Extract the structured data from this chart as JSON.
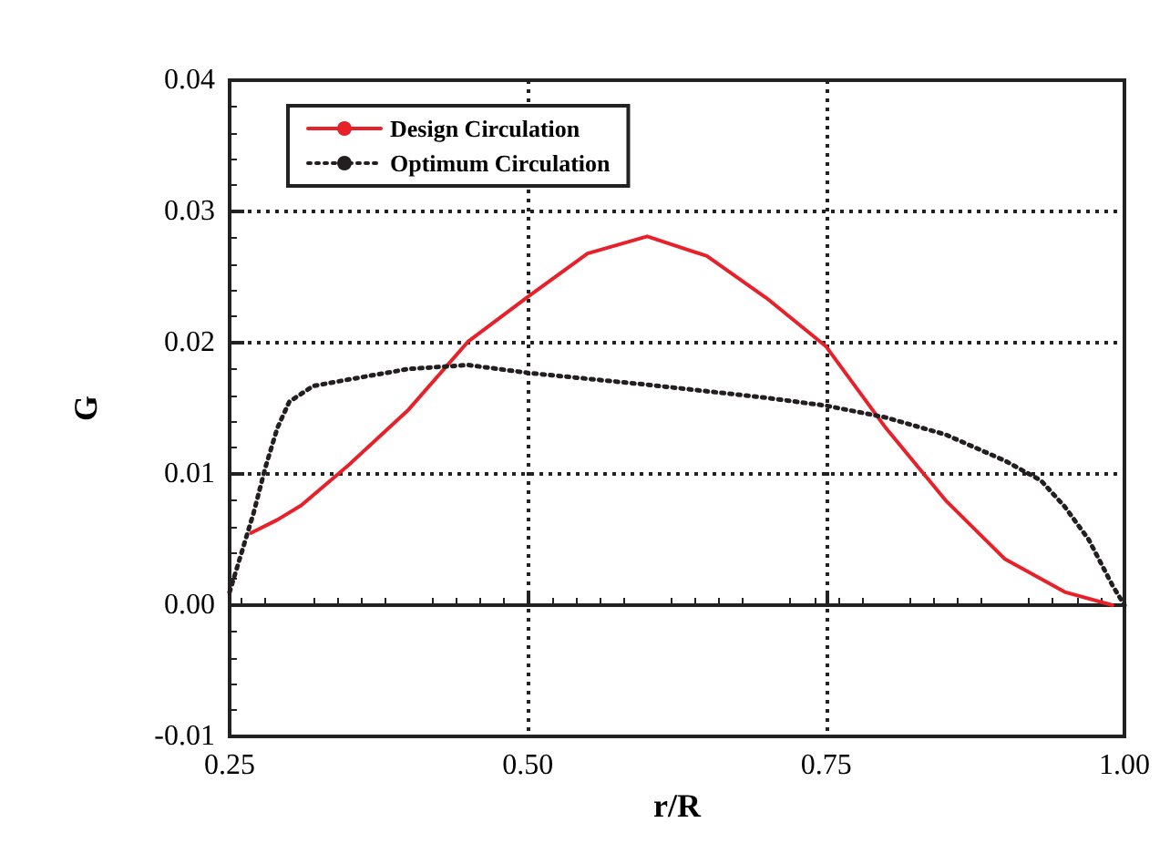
{
  "chart_data": {
    "type": "line",
    "xlabel": "r/R",
    "ylabel": "G",
    "xlim": [
      0.25,
      1.0
    ],
    "ylim": [
      -0.01,
      0.04
    ],
    "xticks": [
      {
        "value": 0.25,
        "label": "0.25"
      },
      {
        "value": 0.5,
        "label": "0.50"
      },
      {
        "value": 0.75,
        "label": "0.75"
      },
      {
        "value": 1.0,
        "label": "1.00"
      }
    ],
    "yticks": [
      {
        "value": -0.01,
        "label": "-0.01"
      },
      {
        "value": 0,
        "label": "0.00"
      },
      {
        "value": 0.01,
        "label": "0.01"
      },
      {
        "value": 0.02,
        "label": "0.02"
      },
      {
        "value": 0.03,
        "label": "0.03"
      },
      {
        "value": 0.04,
        "label": "0.04"
      }
    ],
    "grid": true,
    "legend": "top left",
    "marker": "none",
    "series": [
      {
        "name": "Design Circulation",
        "color": "#e8202a",
        "line_style": "solid",
        "x": [
          0.268,
          0.29,
          0.31,
          0.35,
          0.4,
          0.45,
          0.5,
          0.55,
          0.6,
          0.65,
          0.7,
          0.75,
          0.8,
          0.85,
          0.9,
          0.95,
          0.99
        ],
        "values": [
          0.0055,
          0.0065,
          0.0076,
          0.0107,
          0.0149,
          0.0201,
          0.0235,
          0.0268,
          0.0281,
          0.0266,
          0.0234,
          0.0197,
          0.0135,
          0.008,
          0.0035,
          0.001,
          0.0
        ]
      },
      {
        "name": "Optimum Circulation",
        "color": "#231f20",
        "line_style": "dotted",
        "x": [
          0.25,
          0.26,
          0.27,
          0.28,
          0.29,
          0.3,
          0.32,
          0.35,
          0.4,
          0.45,
          0.5,
          0.6,
          0.7,
          0.75,
          0.8,
          0.85,
          0.9,
          0.93,
          0.95,
          0.97,
          0.99,
          1.0
        ],
        "values": [
          0.001,
          0.004,
          0.007,
          0.0105,
          0.0135,
          0.0155,
          0.0167,
          0.0172,
          0.018,
          0.0183,
          0.0177,
          0.0168,
          0.0158,
          0.0152,
          0.0143,
          0.013,
          0.011,
          0.0095,
          0.0075,
          0.005,
          0.0015,
          0.0
        ]
      }
    ]
  }
}
